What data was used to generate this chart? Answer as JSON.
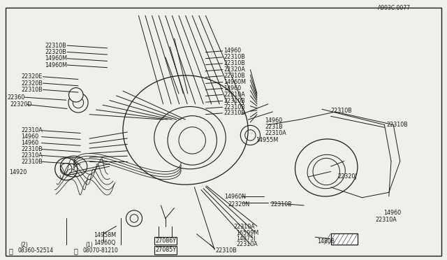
{
  "bg_color": "#f0f0eb",
  "line_color": "#1a1a1a",
  "text_color": "#1a1a1a",
  "fig_width": 6.4,
  "fig_height": 3.72,
  "dpi": 100,
  "catalog_num": "A993C.0077",
  "border": [
    0.012,
    0.03,
    0.976,
    0.955
  ]
}
